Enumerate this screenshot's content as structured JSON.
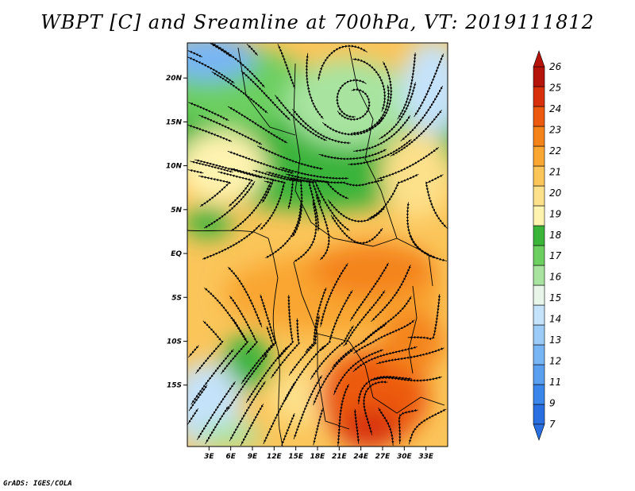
{
  "title": "WBPT [C] and Sreamline at 700hPa, VT: 2019111812",
  "credit": "GrADS: IGES/COLA",
  "map": {
    "lon_range": [
      0,
      36
    ],
    "lat_range": [
      -22,
      24
    ],
    "lat_ticks": [
      {
        "value": 20,
        "label": "20N"
      },
      {
        "value": 15,
        "label": "15N"
      },
      {
        "value": 10,
        "label": "10N"
      },
      {
        "value": 5,
        "label": "5N"
      },
      {
        "value": 0,
        "label": "EQ"
      },
      {
        "value": -5,
        "label": "5S"
      },
      {
        "value": -10,
        "label": "10S"
      },
      {
        "value": -15,
        "label": "15S"
      }
    ],
    "lon_ticks": [
      {
        "value": 3,
        "label": "3E"
      },
      {
        "value": 6,
        "label": "6E"
      },
      {
        "value": 9,
        "label": "9E"
      },
      {
        "value": 12,
        "label": "12E"
      },
      {
        "value": 15,
        "label": "15E"
      },
      {
        "value": 18,
        "label": "18E"
      },
      {
        "value": 21,
        "label": "21E"
      },
      {
        "value": 24,
        "label": "24E"
      },
      {
        "value": 27,
        "label": "27E"
      },
      {
        "value": 30,
        "label": "30E"
      },
      {
        "value": 33,
        "label": "33E"
      }
    ]
  },
  "colorbar": {
    "labels": [
      "7",
      "9",
      "11",
      "12",
      "13",
      "14",
      "15",
      "16",
      "17",
      "18",
      "19",
      "20",
      "21",
      "22",
      "23",
      "24",
      "25",
      "26"
    ],
    "colors": [
      "#2a6fe0",
      "#3a86ea",
      "#5a9ff0",
      "#78b5f4",
      "#9ccbf7",
      "#c4e2fa",
      "#e8f6ea",
      "#a8e4a0",
      "#6ccf60",
      "#3bb43a",
      "#fff3b0",
      "#fde08a",
      "#fbc55a",
      "#f9a632",
      "#f4841a",
      "#ec5a10",
      "#d8300a",
      "#b4140a"
    ]
  }
}
